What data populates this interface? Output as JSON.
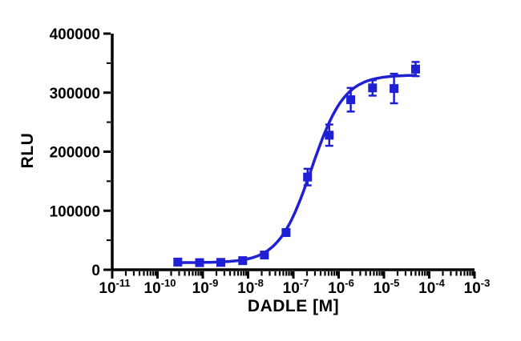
{
  "chart_data": {
    "type": "scatter",
    "title": "",
    "xlabel": "DADLE [M]",
    "ylabel": "RLU",
    "x_scale": "log",
    "xlim_exp": [
      -11,
      -3
    ],
    "ylim": [
      0,
      400000
    ],
    "y_ticks": [
      0,
      100000,
      200000,
      300000,
      400000
    ],
    "y_minor_step": 50000,
    "x_major_ticks_exp": [
      -11,
      -10,
      -9,
      -8,
      -7,
      -6,
      -5,
      -4,
      -3
    ],
    "grid": false,
    "legend": "none",
    "series": [
      {
        "name": "DADLE",
        "color": "#1f1fd3",
        "marker": "square",
        "x": [
          2.8e-10,
          8.5e-10,
          2.5e-09,
          7.6e-09,
          2.3e-08,
          6.9e-08,
          2.06e-07,
          6.2e-07,
          1.85e-06,
          5.6e-06,
          1.67e-05,
          5e-05
        ],
        "y": [
          13000,
          12000,
          12500,
          15500,
          25000,
          63000,
          157000,
          228000,
          288000,
          308000,
          307000,
          340000
        ],
        "yerr": [
          2500,
          2500,
          2500,
          3000,
          4000,
          5000,
          14000,
          18000,
          20000,
          13000,
          25000,
          12000
        ]
      }
    ],
    "fit": {
      "model": "4PL",
      "bottom": 12000,
      "top": 330000,
      "logEC50": -6.6,
      "hill": 1.2
    }
  }
}
